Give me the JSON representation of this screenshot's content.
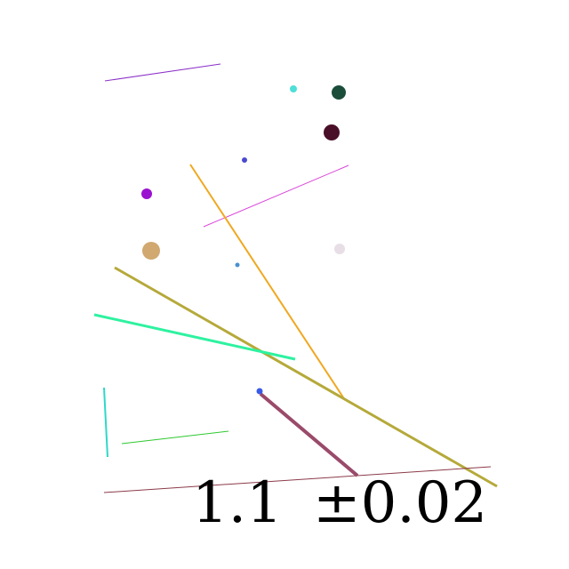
{
  "labels": {
    "value": "1.1",
    "uncertainty": "±0.02"
  },
  "colors": {
    "background": "#ffffff",
    "text": "#000000",
    "purple_line": "#8b2fc9",
    "magenta_line": "#d946d9",
    "orange_line": "#f0a820",
    "olive_line": "#b5a93a",
    "spring_green_line": "#2ef2a0",
    "turquoise_line": "#2ed8c8",
    "green_line": "#2ec82e",
    "maroon_line": "#8b3a4a",
    "rose_line": "#9a4a6a",
    "cyan_dot": "#4ddfd8",
    "dark_green_dot": "#1a4d3a",
    "dark_maroon_dot": "#4a0f28",
    "blue_dot": "#4a4ad0",
    "violet_dot": "#9a10d0",
    "tan_dot": "#d0a870",
    "steel_blue_dot": "#4a90d0",
    "pale_dot": "#e8dfe6",
    "royal_blue_dot": "#3a5ae8"
  }
}
